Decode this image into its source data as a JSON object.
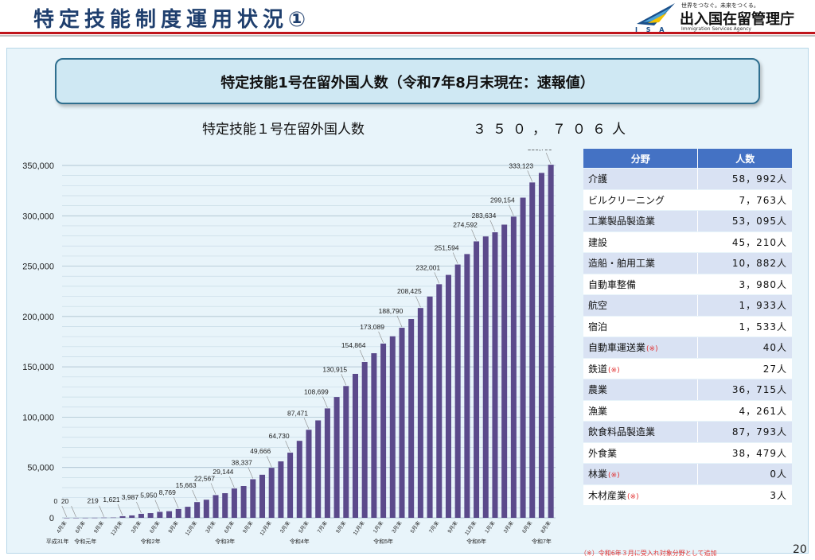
{
  "header": {
    "title": "特定技能制度運用状況①",
    "logo": {
      "tagline": "世界をつなぐ。未来をつくる。",
      "name": "出入国在留管理庁",
      "english": "Immigration Services Agency",
      "acronym": "I S A"
    }
  },
  "banner": {
    "text": "特定技能1号在留外国人数（令和7年8月末現在：速報値）"
  },
  "summary": {
    "label": "特定技能１号在留外国人数",
    "value": "３５０，７０６人"
  },
  "chart_data": {
    "type": "bar",
    "color": "#5b4a8b",
    "ylim": [
      0,
      350000
    ],
    "yticks": [
      "0",
      "50,000",
      "100,000",
      "150,000",
      "200,000",
      "250,000",
      "300,000",
      "350,000"
    ],
    "values": [
      0,
      20,
      50,
      100,
      219,
      300,
      1621,
      2400,
      3987,
      4700,
      5950,
      6600,
      8769,
      11000,
      15663,
      18000,
      22567,
      24500,
      29144,
      31600,
      38337,
      42800,
      49666,
      56100,
      64730,
      76500,
      87471,
      96800,
      108699,
      120000,
      130915,
      143000,
      154864,
      163500,
      173089,
      180300,
      188790,
      197500,
      208425,
      219800,
      232001,
      241300,
      251594,
      262000,
      274592,
      279500,
      283634,
      291200,
      299154,
      318000,
      333123,
      342600,
      350706
    ],
    "data_labels": [
      {
        "i": 0,
        "text": "0"
      },
      {
        "i": 1,
        "text": "20"
      },
      {
        "i": 4,
        "text": "219"
      },
      {
        "i": 6,
        "text": "1,621"
      },
      {
        "i": 8,
        "text": "3,987"
      },
      {
        "i": 10,
        "text": "5,950"
      },
      {
        "i": 12,
        "text": "8,769"
      },
      {
        "i": 14,
        "text": "15,663"
      },
      {
        "i": 16,
        "text": "22,567"
      },
      {
        "i": 18,
        "text": "29,144"
      },
      {
        "i": 20,
        "text": "38,337"
      },
      {
        "i": 22,
        "text": "49,666"
      },
      {
        "i": 24,
        "text": "64,730"
      },
      {
        "i": 26,
        "text": "87,471"
      },
      {
        "i": 28,
        "text": "108,699"
      },
      {
        "i": 30,
        "text": "130,915"
      },
      {
        "i": 32,
        "text": "154,864"
      },
      {
        "i": 34,
        "text": "173,089"
      },
      {
        "i": 36,
        "text": "188,790"
      },
      {
        "i": 38,
        "text": "208,425"
      },
      {
        "i": 40,
        "text": "232,001"
      },
      {
        "i": 42,
        "text": "251,594"
      },
      {
        "i": 44,
        "text": "274,592"
      },
      {
        "i": 46,
        "text": "283,634"
      },
      {
        "i": 48,
        "text": "299,154"
      },
      {
        "i": 50,
        "text": "333,123"
      },
      {
        "i": 52,
        "text": "350,706"
      }
    ],
    "x_labels": [
      {
        "i": 0,
        "text": "4月末"
      },
      {
        "i": 2,
        "text": "6月末"
      },
      {
        "i": 4,
        "text": "9月末"
      },
      {
        "i": 6,
        "text": "12月末"
      },
      {
        "i": 8,
        "text": "3月末"
      },
      {
        "i": 10,
        "text": "6月末"
      },
      {
        "i": 12,
        "text": "9月末"
      },
      {
        "i": 14,
        "text": "12月末"
      },
      {
        "i": 16,
        "text": "3月末"
      },
      {
        "i": 18,
        "text": "6月末"
      },
      {
        "i": 20,
        "text": "9月末"
      },
      {
        "i": 22,
        "text": "12月末"
      },
      {
        "i": 24,
        "text": "3月末"
      },
      {
        "i": 26,
        "text": "5月末"
      },
      {
        "i": 28,
        "text": "7月末"
      },
      {
        "i": 30,
        "text": "9月末"
      },
      {
        "i": 32,
        "text": "11月末"
      },
      {
        "i": 34,
        "text": "1月末"
      },
      {
        "i": 36,
        "text": "3月末"
      },
      {
        "i": 38,
        "text": "5月末"
      },
      {
        "i": 40,
        "text": "7月末"
      },
      {
        "i": 42,
        "text": "9月末"
      },
      {
        "i": 44,
        "text": "11月末"
      },
      {
        "i": 46,
        "text": "1月末"
      },
      {
        "i": 48,
        "text": "3月末"
      },
      {
        "i": 50,
        "text": "6月末"
      },
      {
        "i": 52,
        "text": "8月末"
      }
    ],
    "era_labels": [
      {
        "i": -1,
        "text": "平成31年"
      },
      {
        "i": 2,
        "text": "令和元年"
      },
      {
        "i": 9,
        "text": "令和2年"
      },
      {
        "i": 17,
        "text": "令和3年"
      },
      {
        "i": 25,
        "text": "令和4年"
      },
      {
        "i": 34,
        "text": "令和5年"
      },
      {
        "i": 44,
        "text": "令和6年"
      },
      {
        "i": 51,
        "text": "令和7年"
      }
    ]
  },
  "table": {
    "headers": {
      "field": "分野",
      "count": "人数"
    },
    "rows": [
      {
        "field": "介護",
        "count": "58，992人"
      },
      {
        "field": "ビルクリーニング",
        "count": "7，763人"
      },
      {
        "field": "工業製品製造業",
        "count": "53，095人"
      },
      {
        "field": "建設",
        "count": "45，210人"
      },
      {
        "field": "造船・舶用工業",
        "count": "10，882人"
      },
      {
        "field": "自動車整備",
        "count": "3，980人"
      },
      {
        "field": "航空",
        "count": "1，933人"
      },
      {
        "field": "宿泊",
        "count": "1，533人"
      },
      {
        "field": "自動車運送業",
        "mark": "(※)",
        "count": "40人"
      },
      {
        "field": "鉄道",
        "mark": "(※)",
        "count": "27人"
      },
      {
        "field": "農業",
        "count": "36，715人"
      },
      {
        "field": "漁業",
        "count": "4，261人"
      },
      {
        "field": "飲食料品製造業",
        "count": "87，793人"
      },
      {
        "field": "外食業",
        "count": "38，479人"
      },
      {
        "field": "林業",
        "mark": "(※)",
        "count": "0人"
      },
      {
        "field": "木材産業",
        "mark": "(※)",
        "count": "3人"
      }
    ]
  },
  "footnote": "（※）令和6年３月に受入れ対象分野として追加",
  "page_number": "20"
}
